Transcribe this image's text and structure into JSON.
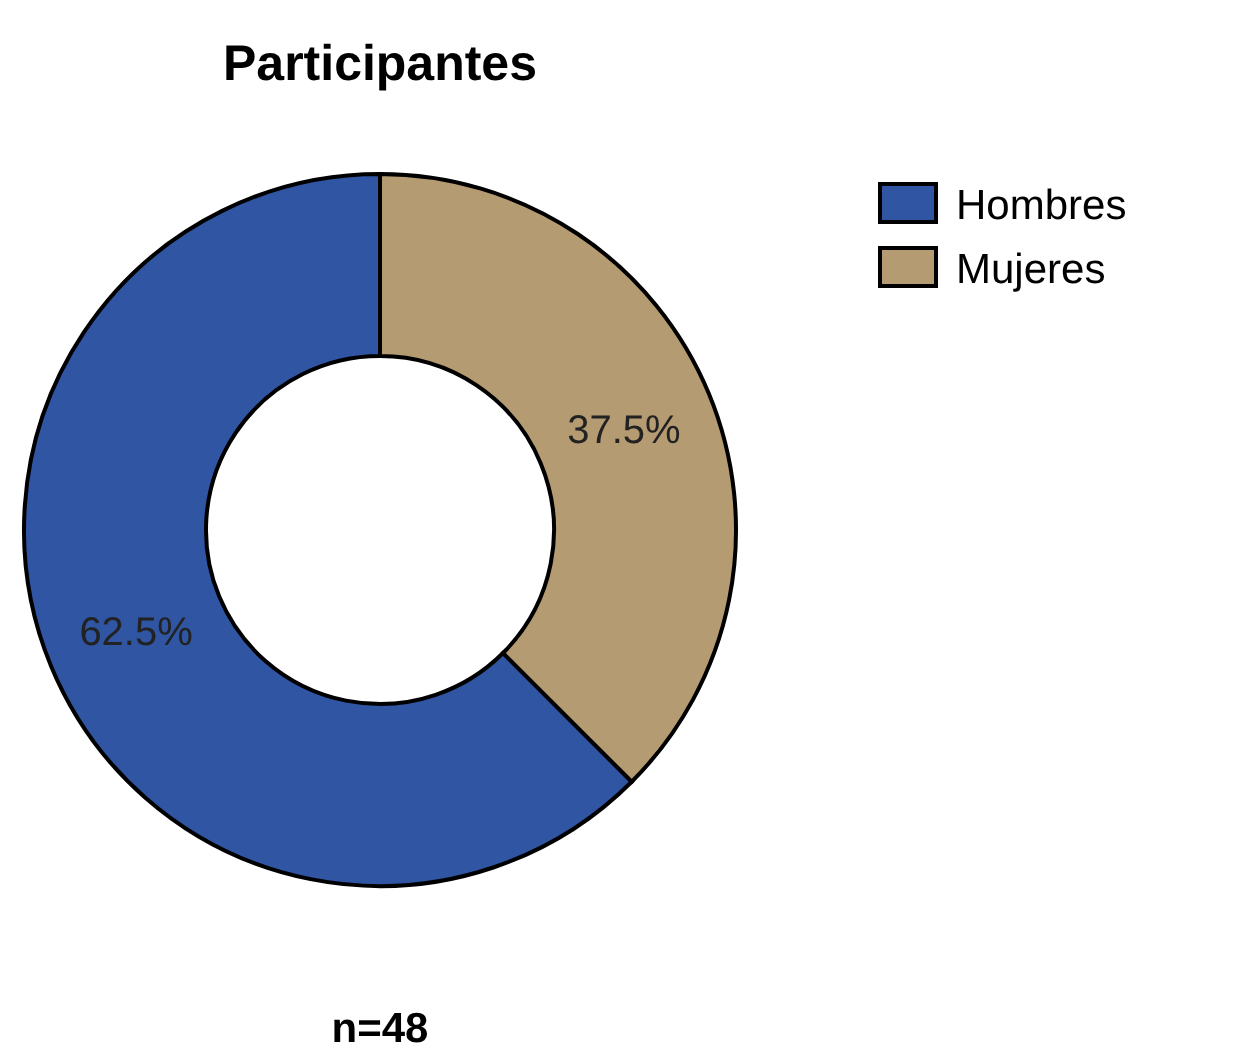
{
  "chart_data": {
    "type": "donut",
    "title": "Participantes",
    "categories": [
      "Hombres",
      "Mujeres"
    ],
    "values": [
      62.5,
      37.5
    ],
    "colors": [
      "#2f55a3",
      "#b59b72"
    ],
    "value_labels": [
      "62.5%",
      "37.5%"
    ],
    "legend": "top right",
    "annotations": [
      "n=48"
    ]
  }
}
